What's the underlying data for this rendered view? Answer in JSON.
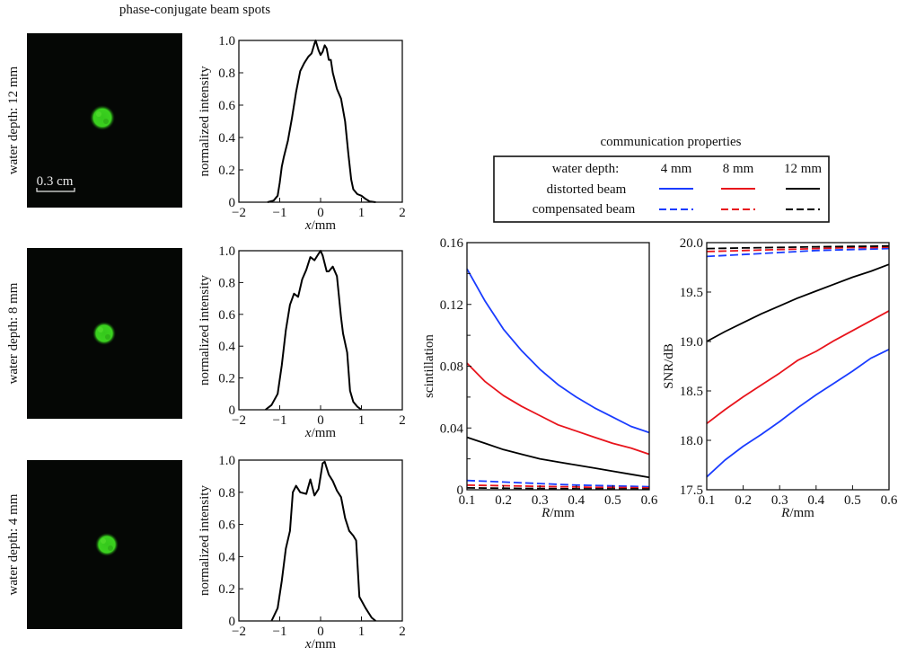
{
  "left_title": "phase-conjugate beam spots",
  "right_title": "communication properties",
  "scale_bar_label": "0.3 cm",
  "spot_color": "#3bd11f",
  "legend": {
    "header": "water depth:",
    "columns": [
      "4 mm",
      "8 mm",
      "12 mm"
    ],
    "colors": [
      "#1a3cff",
      "#e8141c",
      "#000000"
    ],
    "rows": [
      {
        "label": "distorted beam",
        "style": "solid"
      },
      {
        "label": "compensated beam",
        "style": "dashed"
      }
    ]
  },
  "chart_data": [
    {
      "type": "line",
      "id": "profile-12mm",
      "row_label": "water depth: 12 mm",
      "xlabel_italic": "x",
      "xlabel_rest": "/mm",
      "ylabel": "normalized intensity",
      "xlim": [
        -2,
        2
      ],
      "ylim": [
        0,
        1.0
      ],
      "xticks": [
        -2,
        -1,
        0,
        1,
        2
      ],
      "xtick_labels": [
        "−2",
        "−1",
        "0",
        "1",
        "2"
      ],
      "yticks": [
        0,
        0.2,
        0.4,
        0.6,
        0.8,
        1.0
      ],
      "ytick_labels": [
        "0",
        "0.2",
        "0.4",
        "0.6",
        "0.8",
        "1.0"
      ],
      "series": [
        {
          "name": "profile",
          "color": "#000000",
          "x": [
            -1.3,
            -1.15,
            -1.05,
            -1.0,
            -0.95,
            -0.9,
            -0.8,
            -0.7,
            -0.6,
            -0.5,
            -0.4,
            -0.3,
            -0.22,
            -0.15,
            -0.12,
            -0.05,
            0.0,
            0.05,
            0.1,
            0.15,
            0.2,
            0.25,
            0.3,
            0.4,
            0.5,
            0.6,
            0.68,
            0.75,
            0.8,
            0.9,
            1.0,
            1.1,
            1.2,
            1.35
          ],
          "y": [
            0,
            0.01,
            0.04,
            0.12,
            0.22,
            0.28,
            0.38,
            0.52,
            0.68,
            0.81,
            0.86,
            0.9,
            0.92,
            0.98,
            1.0,
            0.94,
            0.91,
            0.93,
            0.97,
            0.95,
            0.88,
            0.88,
            0.8,
            0.7,
            0.64,
            0.5,
            0.3,
            0.14,
            0.08,
            0.05,
            0.04,
            0.02,
            0.005,
            0
          ]
        }
      ]
    },
    {
      "type": "line",
      "id": "profile-8mm",
      "row_label": "water depth: 8 mm",
      "xlabel_italic": "x",
      "xlabel_rest": "/mm",
      "ylabel": "normalized intensity",
      "xlim": [
        -2,
        2
      ],
      "ylim": [
        0,
        1.0
      ],
      "xticks": [
        -2,
        -1,
        0,
        1,
        2
      ],
      "xtick_labels": [
        "−2",
        "−1",
        "0",
        "1",
        "2"
      ],
      "yticks": [
        0,
        0.2,
        0.4,
        0.6,
        0.8,
        1.0
      ],
      "ytick_labels": [
        "0",
        "0.2",
        "0.4",
        "0.6",
        "0.8",
        "1.0"
      ],
      "series": [
        {
          "name": "profile",
          "color": "#000000",
          "x": [
            -1.35,
            -1.2,
            -1.05,
            -0.95,
            -0.85,
            -0.75,
            -0.65,
            -0.55,
            -0.45,
            -0.35,
            -0.25,
            -0.15,
            -0.05,
            0.0,
            0.05,
            0.15,
            0.2,
            0.3,
            0.4,
            0.5,
            0.55,
            0.65,
            0.72,
            0.8,
            0.9,
            1.0
          ],
          "y": [
            0,
            0.03,
            0.1,
            0.28,
            0.5,
            0.66,
            0.73,
            0.71,
            0.82,
            0.88,
            0.96,
            0.94,
            0.98,
            1.0,
            0.97,
            0.87,
            0.87,
            0.9,
            0.84,
            0.58,
            0.48,
            0.36,
            0.12,
            0.05,
            0.02,
            0
          ]
        }
      ]
    },
    {
      "type": "line",
      "id": "profile-4mm",
      "row_label": "water depth: 4 mm",
      "xlabel_italic": "x",
      "xlabel_rest": "/mm",
      "ylabel": "normalized intensity",
      "xlim": [
        -2,
        2
      ],
      "ylim": [
        0,
        1.0
      ],
      "xticks": [
        -2,
        -1,
        0,
        1,
        2
      ],
      "xtick_labels": [
        "−2",
        "−1",
        "0",
        "1",
        "2"
      ],
      "yticks": [
        0,
        0.2,
        0.4,
        0.6,
        0.8,
        1.0
      ],
      "ytick_labels": [
        "0",
        "0.2",
        "0.4",
        "0.6",
        "0.8",
        "1.0"
      ],
      "series": [
        {
          "name": "profile",
          "color": "#000000",
          "x": [
            -1.2,
            -1.05,
            -0.95,
            -0.85,
            -0.75,
            -0.68,
            -0.6,
            -0.5,
            -0.35,
            -0.25,
            -0.15,
            -0.05,
            0.05,
            0.1,
            0.2,
            0.3,
            0.4,
            0.5,
            0.6,
            0.7,
            0.8,
            0.87,
            0.95,
            1.1,
            1.25,
            1.35
          ],
          "y": [
            0,
            0.08,
            0.25,
            0.45,
            0.56,
            0.8,
            0.84,
            0.8,
            0.79,
            0.88,
            0.78,
            0.82,
            0.98,
            0.99,
            0.91,
            0.87,
            0.81,
            0.77,
            0.64,
            0.56,
            0.53,
            0.5,
            0.15,
            0.08,
            0.02,
            0
          ]
        }
      ]
    },
    {
      "type": "line",
      "id": "scintillation",
      "xlabel_italic": "R",
      "xlabel_rest": "/mm",
      "ylabel": "scintillation",
      "xlim": [
        0.1,
        0.6
      ],
      "ylim": [
        0,
        0.16
      ],
      "xticks": [
        0.1,
        0.2,
        0.3,
        0.4,
        0.5,
        0.6
      ],
      "xtick_labels": [
        "0.1",
        "0.2",
        "0.3",
        "0.4",
        "0.5",
        "0.6"
      ],
      "yticks": [
        0,
        0.04,
        0.08,
        0.12,
        0.16
      ],
      "ytick_labels": [
        "0",
        "0.04",
        "0.08",
        "0.12",
        "0.16"
      ],
      "minor_yticks": [
        0.02,
        0.06,
        0.1,
        0.14
      ],
      "x": [
        0.1,
        0.15,
        0.2,
        0.25,
        0.3,
        0.35,
        0.4,
        0.45,
        0.5,
        0.55,
        0.6
      ],
      "series": [
        {
          "name": "distorted 4 mm",
          "color": "#1a3cff",
          "dash": false,
          "values": [
            0.143,
            0.122,
            0.104,
            0.09,
            0.078,
            0.068,
            0.06,
            0.053,
            0.047,
            0.041,
            0.037
          ]
        },
        {
          "name": "distorted 8 mm",
          "color": "#e8141c",
          "dash": false,
          "values": [
            0.082,
            0.07,
            0.061,
            0.054,
            0.048,
            0.042,
            0.038,
            0.034,
            0.03,
            0.027,
            0.023
          ]
        },
        {
          "name": "distorted 12 mm",
          "color": "#000000",
          "dash": false,
          "values": [
            0.034,
            0.03,
            0.026,
            0.023,
            0.02,
            0.018,
            0.016,
            0.014,
            0.012,
            0.01,
            0.008
          ]
        },
        {
          "name": "compensated 4 mm",
          "color": "#1a3cff",
          "dash": true,
          "values": [
            0.006,
            0.0055,
            0.005,
            0.0045,
            0.004,
            0.0035,
            0.003,
            0.0028,
            0.0025,
            0.0022,
            0.002
          ]
        },
        {
          "name": "compensated 8 mm",
          "color": "#e8141c",
          "dash": true,
          "values": [
            0.003,
            0.0028,
            0.0026,
            0.0024,
            0.0022,
            0.002,
            0.0018,
            0.0016,
            0.0015,
            0.0014,
            0.0012
          ]
        },
        {
          "name": "compensated 12 mm",
          "color": "#000000",
          "dash": true,
          "values": [
            0.0012,
            0.0011,
            0.001,
            0.0009,
            0.0008,
            0.0007,
            0.0006,
            0.0006,
            0.0005,
            0.0005,
            0.0004
          ]
        }
      ]
    },
    {
      "type": "line",
      "id": "snr",
      "xlabel_italic": "R",
      "xlabel_rest": "/mm",
      "ylabel": "SNR/dB",
      "xlim": [
        0.1,
        0.6
      ],
      "ylim": [
        17.5,
        20.0
      ],
      "xticks": [
        0.1,
        0.2,
        0.3,
        0.4,
        0.5,
        0.6
      ],
      "xtick_labels": [
        "0.1",
        "0.2",
        "0.3",
        "0.4",
        "0.5",
        "0.6"
      ],
      "yticks": [
        17.5,
        18.0,
        18.5,
        19.0,
        19.5,
        20.0
      ],
      "ytick_labels": [
        "17.5",
        "18.0",
        "18.5",
        "19.0",
        "19.5",
        "20.0"
      ],
      "x": [
        0.1,
        0.15,
        0.2,
        0.25,
        0.3,
        0.35,
        0.4,
        0.45,
        0.5,
        0.55,
        0.6
      ],
      "series": [
        {
          "name": "distorted 4 mm",
          "color": "#1a3cff",
          "dash": false,
          "values": [
            17.63,
            17.8,
            17.94,
            18.06,
            18.19,
            18.33,
            18.46,
            18.58,
            18.7,
            18.83,
            18.92
          ]
        },
        {
          "name": "distorted 8 mm",
          "color": "#e8141c",
          "dash": false,
          "values": [
            18.17,
            18.31,
            18.44,
            18.56,
            18.68,
            18.81,
            18.9,
            19.01,
            19.11,
            19.21,
            19.31
          ]
        },
        {
          "name": "distorted 12 mm",
          "color": "#000000",
          "dash": false,
          "values": [
            19.0,
            19.1,
            19.19,
            19.28,
            19.36,
            19.44,
            19.51,
            19.58,
            19.65,
            19.71,
            19.78
          ]
        },
        {
          "name": "compensated 4 mm",
          "color": "#1a3cff",
          "dash": true,
          "values": [
            19.86,
            19.87,
            19.88,
            19.89,
            19.9,
            19.91,
            19.92,
            19.925,
            19.93,
            19.935,
            19.94
          ]
        },
        {
          "name": "compensated 8 mm",
          "color": "#e8141c",
          "dash": true,
          "values": [
            19.91,
            19.915,
            19.92,
            19.925,
            19.93,
            19.935,
            19.94,
            19.945,
            19.95,
            19.95,
            19.955
          ]
        },
        {
          "name": "compensated 12 mm",
          "color": "#000000",
          "dash": true,
          "values": [
            19.94,
            19.943,
            19.946,
            19.949,
            19.952,
            19.955,
            19.958,
            19.96,
            19.962,
            19.964,
            19.966
          ]
        }
      ]
    }
  ]
}
